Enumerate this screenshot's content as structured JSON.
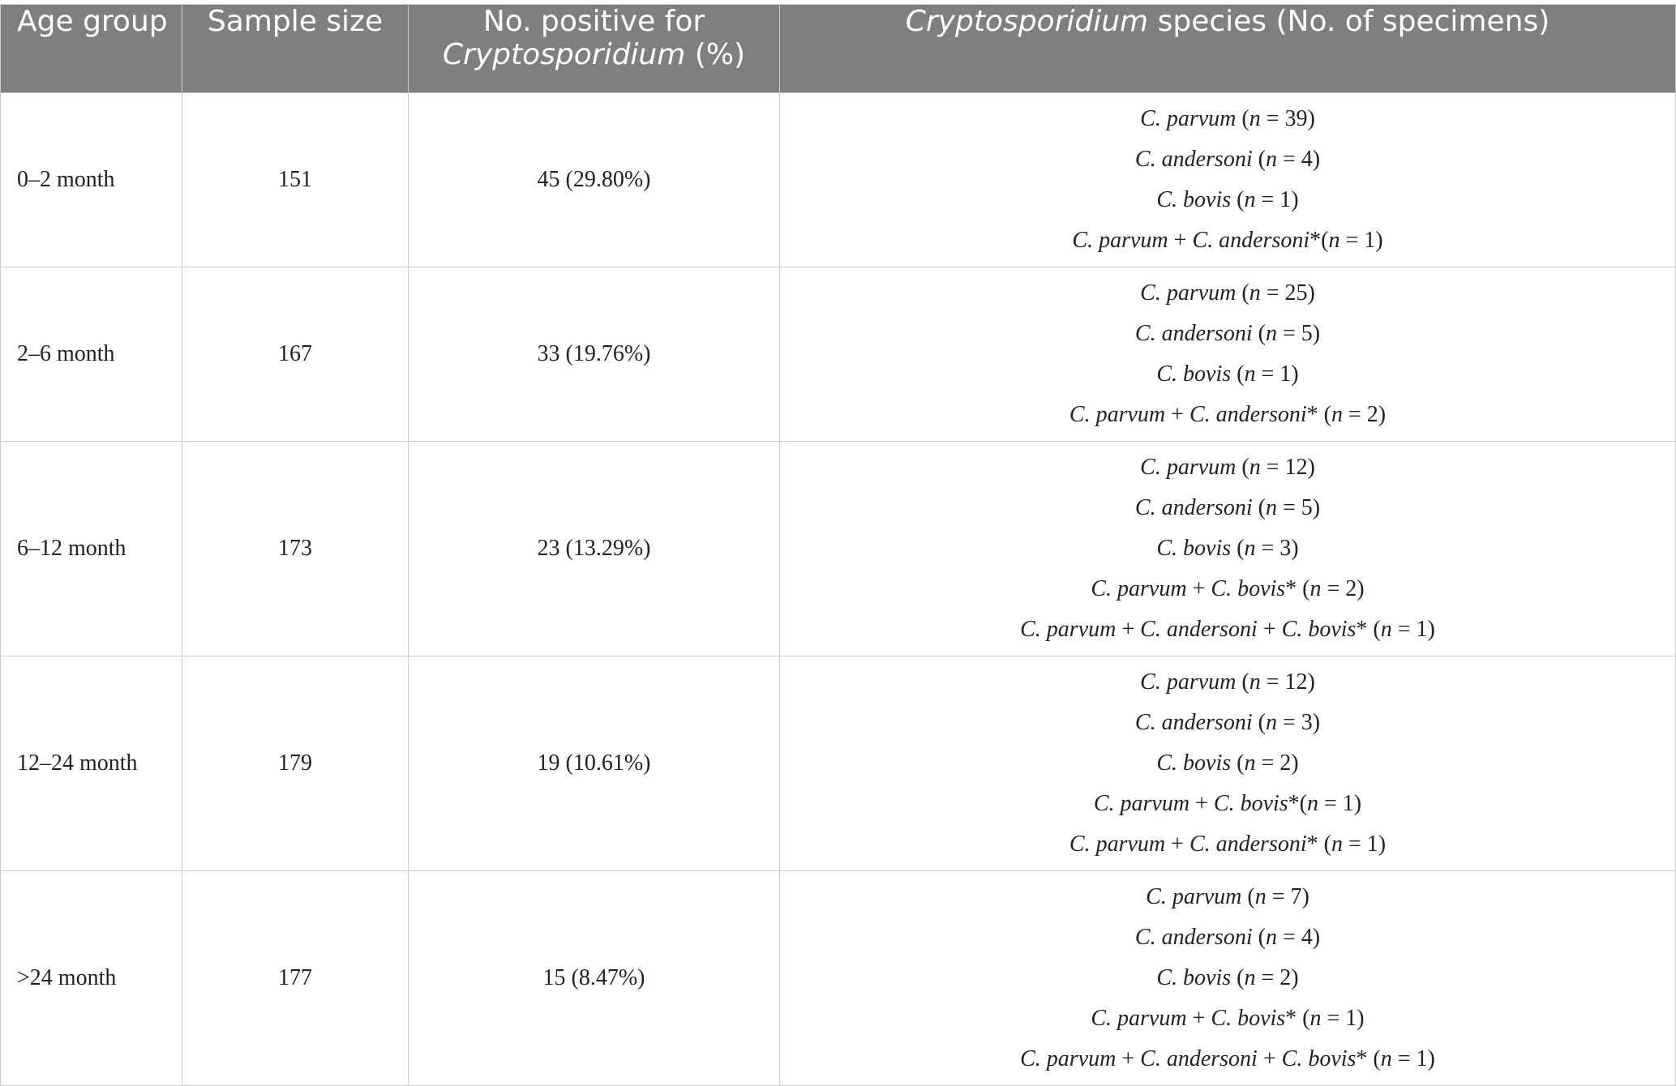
{
  "table": {
    "headers": {
      "age_group": "Age group",
      "sample_size": "Sample size",
      "positive_line1": "No. positive for",
      "positive_genus": "Cryptosporidium",
      "positive_suffix": " (%)",
      "species_genus": "Cryptosporidium",
      "species_suffix": " species (No. of specimens)"
    },
    "rows": [
      {
        "age_group": "0–2 month",
        "sample_size": "151",
        "positive": "45 (29.80%)",
        "species": [
          [
            {
              "t": "C. parvum",
              "i": true
            },
            {
              "t": " (",
              "i": false
            },
            {
              "t": "n",
              "i": true
            },
            {
              "t": " = 39)",
              "i": false
            }
          ],
          [
            {
              "t": "C. andersoni",
              "i": true
            },
            {
              "t": " (",
              "i": false
            },
            {
              "t": "n",
              "i": true
            },
            {
              "t": " = 4)",
              "i": false
            }
          ],
          [
            {
              "t": "C. bovis",
              "i": true
            },
            {
              "t": " (",
              "i": false
            },
            {
              "t": "n",
              "i": true
            },
            {
              "t": " = 1)",
              "i": false
            }
          ],
          [
            {
              "t": "C. parvum",
              "i": true
            },
            {
              "t": " + ",
              "i": false
            },
            {
              "t": "C. andersoni",
              "i": true
            },
            {
              "t": "*(",
              "i": false
            },
            {
              "t": "n",
              "i": true
            },
            {
              "t": " = 1)",
              "i": false
            }
          ]
        ]
      },
      {
        "age_group": "2–6 month",
        "sample_size": "167",
        "positive": "33 (19.76%)",
        "species": [
          [
            {
              "t": "C. parvum",
              "i": true
            },
            {
              "t": " (",
              "i": false
            },
            {
              "t": "n",
              "i": true
            },
            {
              "t": " = 25)",
              "i": false
            }
          ],
          [
            {
              "t": "C. andersoni",
              "i": true
            },
            {
              "t": " (",
              "i": false
            },
            {
              "t": "n",
              "i": true
            },
            {
              "t": " = 5)",
              "i": false
            }
          ],
          [
            {
              "t": "C. bovis",
              "i": true
            },
            {
              "t": " (",
              "i": false
            },
            {
              "t": "n",
              "i": true
            },
            {
              "t": " = 1)",
              "i": false
            }
          ],
          [
            {
              "t": "C. parvum",
              "i": true
            },
            {
              "t": " + ",
              "i": false
            },
            {
              "t": "C. andersoni",
              "i": true
            },
            {
              "t": "* (",
              "i": false
            },
            {
              "t": "n",
              "i": true
            },
            {
              "t": " = 2)",
              "i": false
            }
          ]
        ]
      },
      {
        "age_group": "6–12 month",
        "sample_size": "173",
        "positive": "23 (13.29%)",
        "species": [
          [
            {
              "t": "C. parvum",
              "i": true
            },
            {
              "t": " (",
              "i": false
            },
            {
              "t": "n",
              "i": true
            },
            {
              "t": " = 12)",
              "i": false
            }
          ],
          [
            {
              "t": "C. andersoni",
              "i": true
            },
            {
              "t": " (",
              "i": false
            },
            {
              "t": "n",
              "i": true
            },
            {
              "t": " = 5)",
              "i": false
            }
          ],
          [
            {
              "t": "C. bovis",
              "i": true
            },
            {
              "t": " (",
              "i": false
            },
            {
              "t": "n",
              "i": true
            },
            {
              "t": " = 3)",
              "i": false
            }
          ],
          [
            {
              "t": "C. parvum",
              "i": true
            },
            {
              "t": " + ",
              "i": false
            },
            {
              "t": "C. bovis",
              "i": true
            },
            {
              "t": "* (",
              "i": false
            },
            {
              "t": "n",
              "i": true
            },
            {
              "t": " = 2)",
              "i": false
            }
          ],
          [
            {
              "t": "C. parvum",
              "i": true
            },
            {
              "t": " + ",
              "i": false
            },
            {
              "t": "C. andersoni",
              "i": true
            },
            {
              "t": " + ",
              "i": false
            },
            {
              "t": "C. bovis",
              "i": true
            },
            {
              "t": "* (",
              "i": false
            },
            {
              "t": "n",
              "i": true
            },
            {
              "t": " = 1)",
              "i": false
            }
          ]
        ]
      },
      {
        "age_group": "12–24 month",
        "sample_size": "179",
        "positive": "19 (10.61%)",
        "species": [
          [
            {
              "t": "C. parvum",
              "i": true
            },
            {
              "t": " (",
              "i": false
            },
            {
              "t": "n",
              "i": true
            },
            {
              "t": " = 12)",
              "i": false
            }
          ],
          [
            {
              "t": "C. andersoni",
              "i": true
            },
            {
              "t": " (",
              "i": false
            },
            {
              "t": "n",
              "i": true
            },
            {
              "t": " = 3)",
              "i": false
            }
          ],
          [
            {
              "t": "C. bovis",
              "i": true
            },
            {
              "t": " (",
              "i": false
            },
            {
              "t": "n",
              "i": true
            },
            {
              "t": " = 2)",
              "i": false
            }
          ],
          [
            {
              "t": "C. parvum",
              "i": true
            },
            {
              "t": " + ",
              "i": false
            },
            {
              "t": "C. bovis",
              "i": true
            },
            {
              "t": "*(",
              "i": false
            },
            {
              "t": "n",
              "i": true
            },
            {
              "t": " = 1)",
              "i": false
            }
          ],
          [
            {
              "t": "C. parvum",
              "i": true
            },
            {
              "t": " + ",
              "i": false
            },
            {
              "t": "C. andersoni",
              "i": true
            },
            {
              "t": "* (",
              "i": false
            },
            {
              "t": "n",
              "i": true
            },
            {
              "t": " = 1)",
              "i": false
            }
          ]
        ]
      },
      {
        "age_group": ">24 month",
        "sample_size": "177",
        "positive": "15 (8.47%)",
        "species": [
          [
            {
              "t": "C. parvum",
              "i": true
            },
            {
              "t": " (",
              "i": false
            },
            {
              "t": "n",
              "i": true
            },
            {
              "t": " = 7)",
              "i": false
            }
          ],
          [
            {
              "t": "C. andersoni",
              "i": true
            },
            {
              "t": " (",
              "i": false
            },
            {
              "t": "n",
              "i": true
            },
            {
              "t": " = 4)",
              "i": false
            }
          ],
          [
            {
              "t": "C. bovis",
              "i": true
            },
            {
              "t": " (",
              "i": false
            },
            {
              "t": "n",
              "i": true
            },
            {
              "t": " = 2)",
              "i": false
            }
          ],
          [
            {
              "t": "C. parvum",
              "i": true
            },
            {
              "t": " + ",
              "i": false
            },
            {
              "t": "C. bovis",
              "i": true
            },
            {
              "t": "* (",
              "i": false
            },
            {
              "t": "n",
              "i": true
            },
            {
              "t": " = 1)",
              "i": false
            }
          ],
          [
            {
              "t": "C. parvum",
              "i": true
            },
            {
              "t": " + ",
              "i": false
            },
            {
              "t": "C. andersoni",
              "i": true
            },
            {
              "t": " + ",
              "i": false
            },
            {
              "t": "C. bovis",
              "i": true
            },
            {
              "t": "* (",
              "i": false
            },
            {
              "t": "n",
              "i": true
            },
            {
              "t": " = 1)",
              "i": false
            }
          ]
        ]
      }
    ]
  }
}
